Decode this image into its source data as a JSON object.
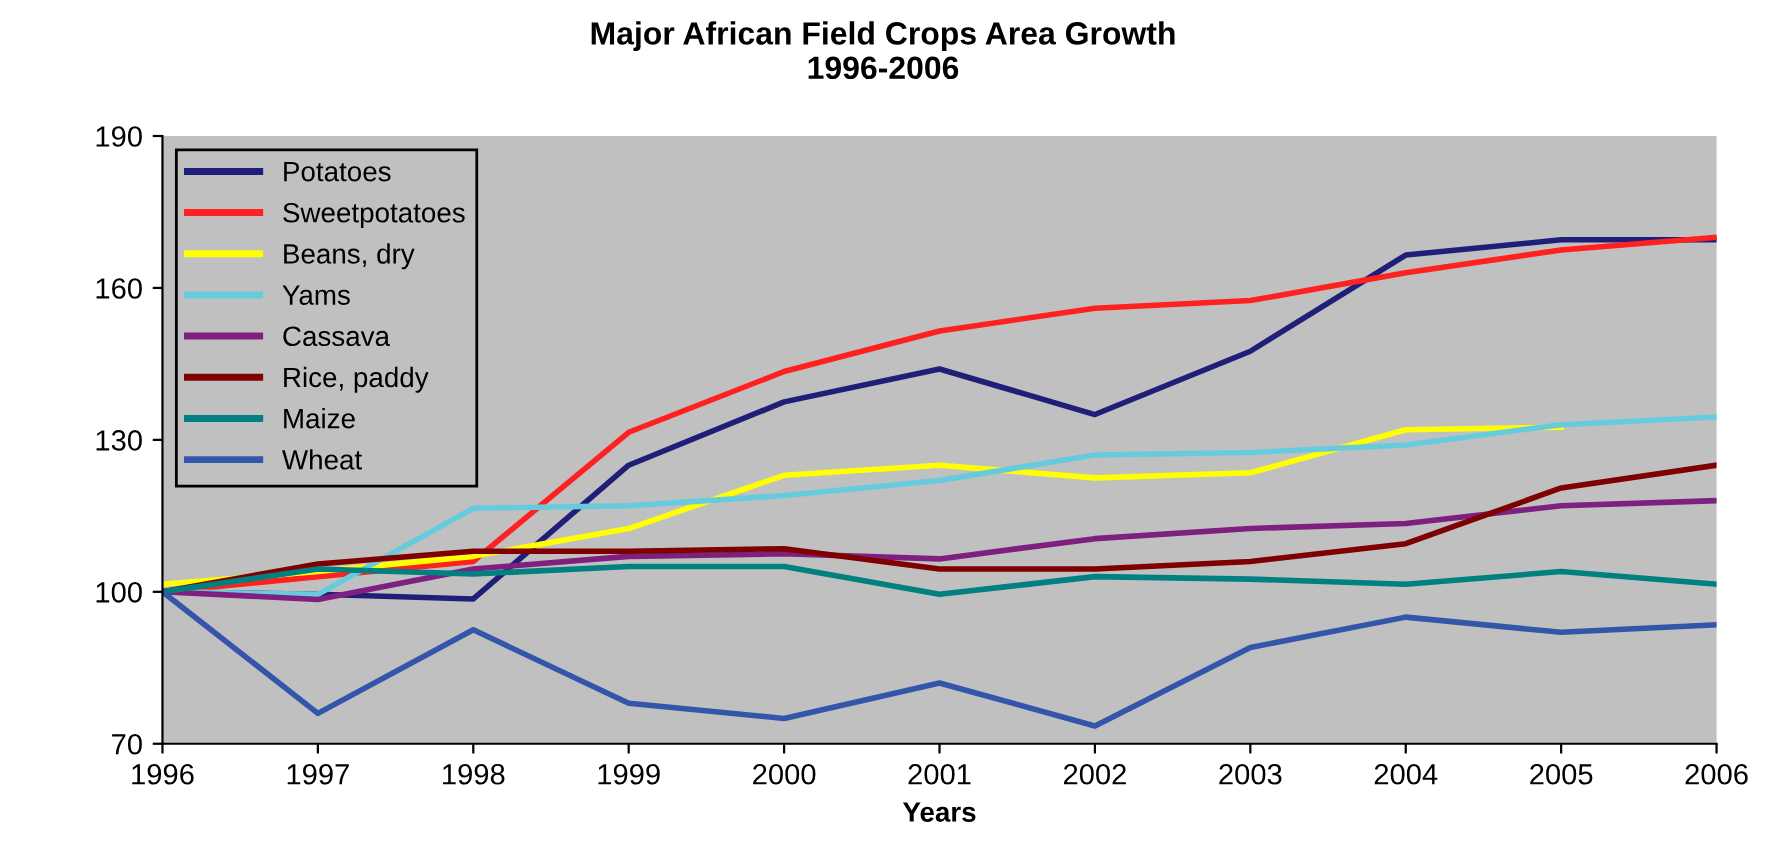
{
  "chart_data": {
    "type": "line",
    "title": "Major African Field Crops Area Growth\n1996-2006",
    "xlabel": "Years",
    "categories": [
      "1996",
      "1997",
      "1998",
      "1999",
      "2000",
      "2001",
      "2002",
      "2003",
      "2004",
      "2005",
      "2006"
    ],
    "ylim": [
      70,
      190
    ],
    "yticks": [
      70,
      100,
      130,
      160,
      190
    ],
    "grid": false,
    "legend": "top left",
    "marker": "none",
    "line_style": "solid",
    "series": [
      {
        "name": "Potatoes",
        "color": "#1f1f7a",
        "values": [
          100,
          99.5,
          98.6,
          125,
          137.5,
          144,
          135,
          147.5,
          166.5,
          169.5,
          169.5
        ]
      },
      {
        "name": "Sweetpotatoes",
        "color": "#ff2020",
        "values": [
          100,
          103,
          106,
          131.5,
          143.5,
          151.5,
          156,
          157.5,
          163,
          167.5,
          170
        ]
      },
      {
        "name": "Beans, dry",
        "color": "#ffff00",
        "values": [
          101.5,
          104,
          107,
          112.5,
          123,
          125,
          122.5,
          123.5,
          132,
          132.5,
          null
        ]
      },
      {
        "name": "Yams",
        "color": "#66ccdd",
        "values": [
          100,
          99.5,
          116.5,
          117,
          119,
          122,
          127,
          127.5,
          129,
          133,
          134.5
        ]
      },
      {
        "name": "Cassava",
        "color": "#7f1f7f",
        "values": [
          100,
          98.5,
          104.5,
          107,
          107.5,
          106.5,
          110.5,
          112.5,
          113.5,
          117,
          118
        ]
      },
      {
        "name": "Rice, paddy",
        "color": "#7f0000",
        "values": [
          100,
          105.5,
          108,
          108,
          108.5,
          104.5,
          104.5,
          106,
          109.5,
          120.5,
          125
        ]
      },
      {
        "name": "Maize",
        "color": "#008080",
        "values": [
          100,
          104.5,
          103.5,
          105,
          105,
          99.5,
          103,
          102.5,
          101.5,
          104,
          101.5
        ]
      },
      {
        "name": "Wheat",
        "color": "#3355aa",
        "values": [
          100,
          76,
          92.5,
          78,
          75,
          82,
          73.5,
          89,
          95,
          92,
          93.5
        ]
      }
    ]
  }
}
